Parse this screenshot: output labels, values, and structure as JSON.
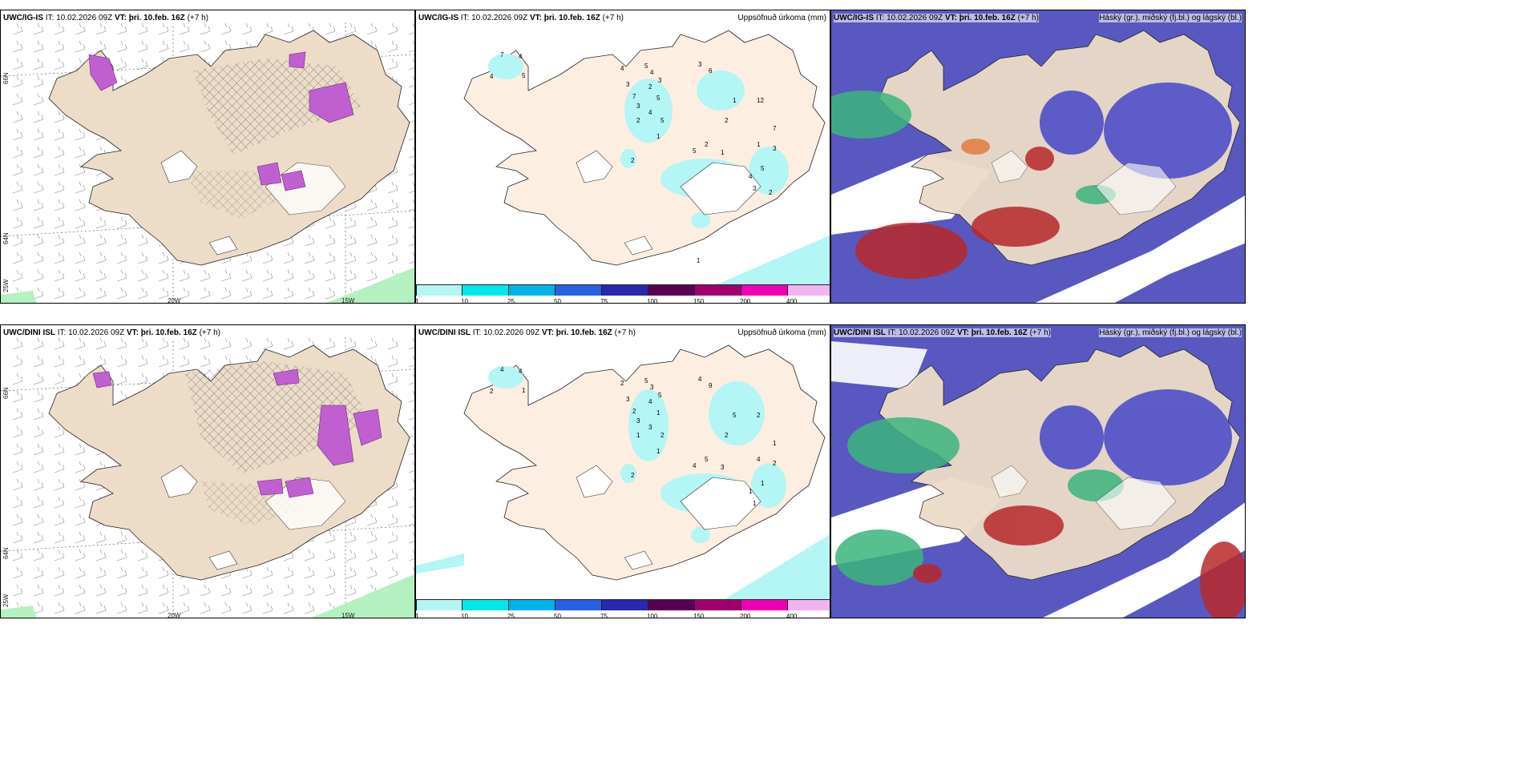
{
  "panels": {
    "top_left": {
      "model": "UWC/IG-IS",
      "it": "IT: 10.02.2026 09Z",
      "vt": "VT: þri. 10.feb. 16Z",
      "lead": "(+7 h)"
    },
    "top_mid": {
      "model": "UWC/IG-IS",
      "it": "IT: 10.02.2026 09Z",
      "vt": "VT: þri. 10.feb. 16Z",
      "lead": "(+7 h)",
      "right": "Uppsöfnuð úrkoma (mm)"
    },
    "top_right": {
      "model": "UWC/IG-IS",
      "it": "IT: 10.02.2026 09Z",
      "vt": "VT: þri. 10.feb. 16Z",
      "lead": "(+7 h)",
      "right": "Háský (gr.), miðský (fj.bl.) og lágský (bl.)"
    },
    "bottom_left": {
      "model": "UWC/DINI ISL",
      "it": "IT: 10.02.2026 09Z",
      "vt": "VT: þri. 10.feb. 16Z",
      "lead": "(+7 h)"
    },
    "bottom_mid": {
      "model": "UWC/DINI ISL",
      "it": "IT: 10.02.2026 09Z",
      "vt": "VT: þri. 10.feb. 16Z",
      "lead": "(+7 h)",
      "right": "Uppsöfnuð úrkoma (mm)"
    },
    "bottom_right": {
      "model": "UWC/DINI ISL",
      "it": "IT: 10.02.2026 09Z",
      "vt": "VT: þri. 10.feb. 16Z",
      "lead": "(+7 h)",
      "right": "Háský (gr.), miðský (fj.bl.) og lágský (bl.)"
    }
  },
  "axis_labels": {
    "lat_66": "66N",
    "lat_64": "64N",
    "lon_25": "25W",
    "lon_20": "20W",
    "lon_15": "15W"
  },
  "colorbar": {
    "labels": [
      "1",
      "10",
      "25",
      "50",
      "75",
      "100",
      "150",
      "200",
      "400"
    ],
    "colors": [
      "#b4f5f5",
      "#00e8e8",
      "#00b4e8",
      "#2860e0",
      "#2828b0",
      "#5a0050",
      "#a0006e",
      "#f000b4",
      "#f0b4f0"
    ]
  },
  "colors": {
    "land": "#ecdcc8",
    "land_mid": "#fdeee2",
    "ocean": "#ffffff",
    "glacier": "#ffffff",
    "precip_light": "#b4f5f5",
    "snow_purple": "#c060d0",
    "high_cloud_green": "#3cb47c",
    "mid_cloud_red": "#b8282a",
    "low_cloud_blue": "#4646c8"
  },
  "precip_labels_top": [
    "7",
    "4",
    "4",
    "5",
    "4",
    "5",
    "4",
    "3",
    "7",
    "2",
    "3",
    "5",
    "3",
    "4",
    "5",
    "2",
    "1",
    "2",
    "3",
    "6",
    "12",
    "1",
    "2",
    "7",
    "2",
    "5",
    "1",
    "1",
    "3",
    "5",
    "4",
    "3",
    "2",
    "1"
  ],
  "precip_labels_bottom": [
    "4",
    "4",
    "2",
    "1",
    "2",
    "5",
    "3",
    "3",
    "2",
    "4",
    "5",
    "1",
    "3",
    "3",
    "2",
    "1",
    "1",
    "2",
    "4",
    "9",
    "2",
    "5",
    "2",
    "1",
    "5",
    "4",
    "3",
    "4",
    "2",
    "1",
    "1",
    "1"
  ]
}
